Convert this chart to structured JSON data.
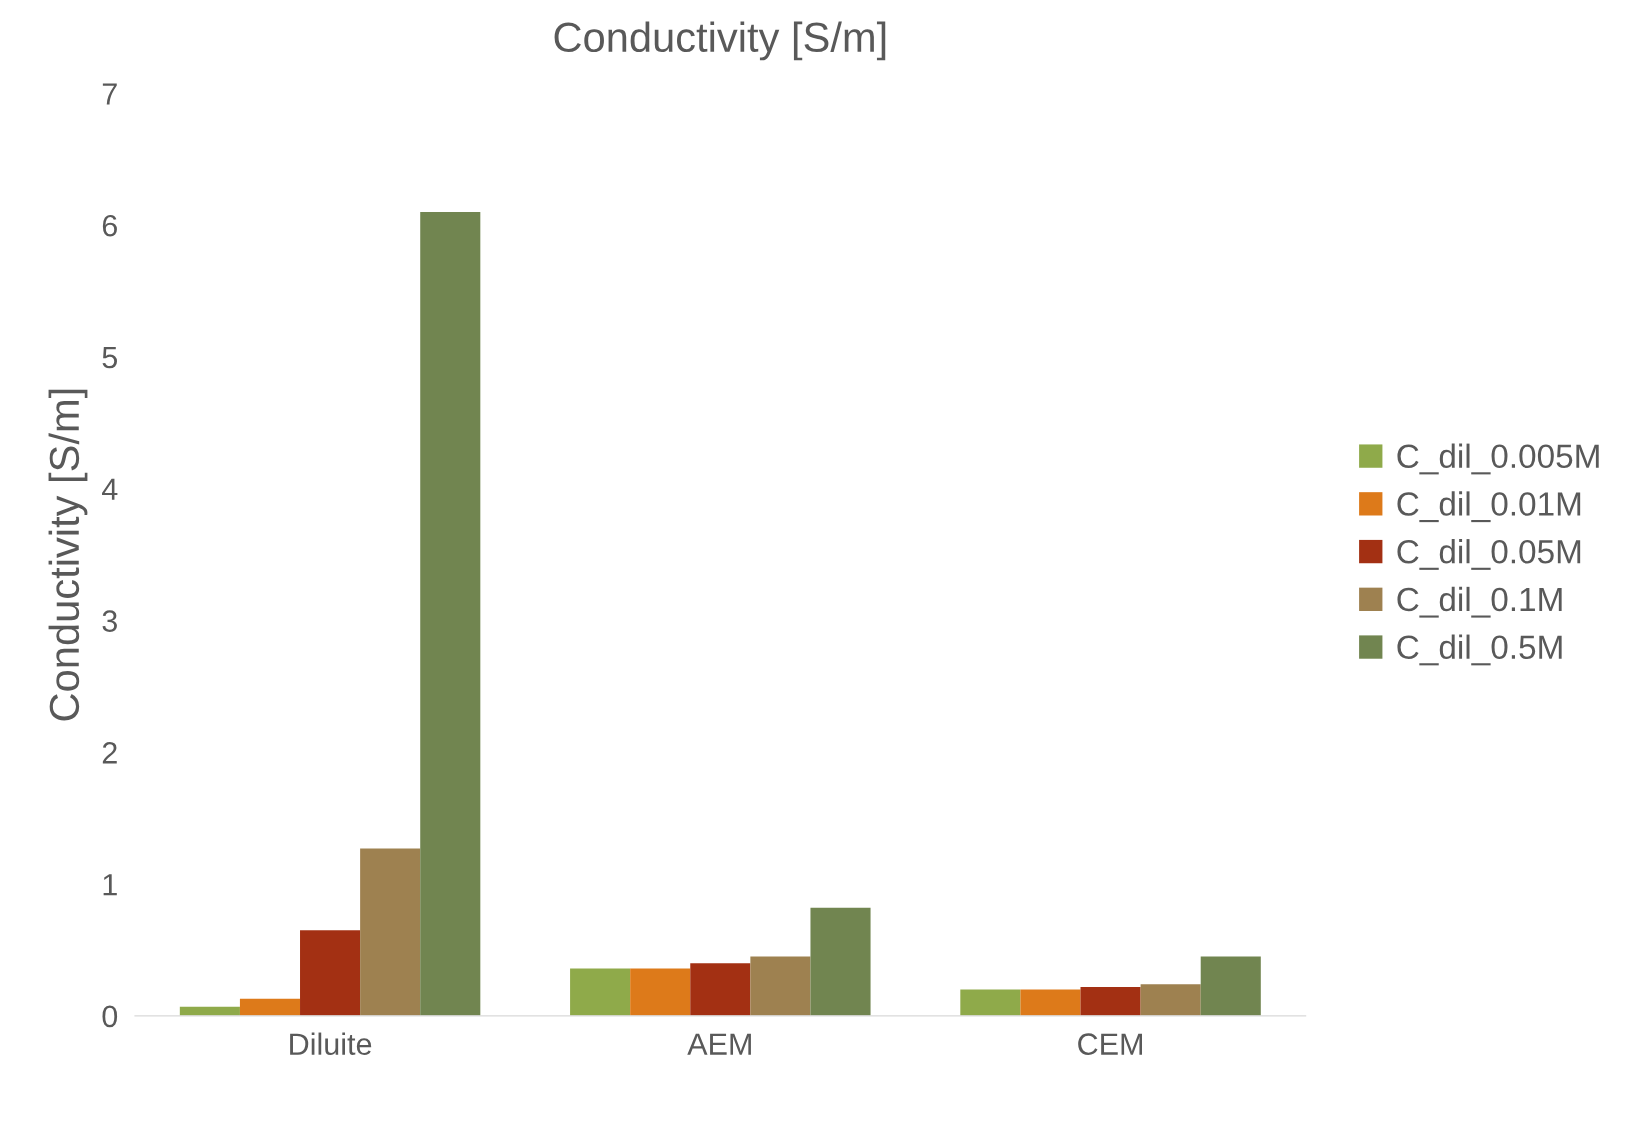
{
  "chart_data": {
    "type": "bar",
    "title": "Conductivity [S/m]",
    "ylabel": "Conductivity [S/m]",
    "categories": [
      "Diluite",
      "AEM",
      "CEM"
    ],
    "series": [
      {
        "name": "C_dil_0.005M",
        "color": "#8faa4a",
        "values": [
          0.07,
          0.36,
          0.2
        ]
      },
      {
        "name": "C_dil_0.01M",
        "color": "#dd7a1a",
        "values": [
          0.13,
          0.36,
          0.2
        ]
      },
      {
        "name": "C_dil_0.05M",
        "color": "#a33013",
        "values": [
          0.65,
          0.4,
          0.22
        ]
      },
      {
        "name": "C_dil_0.1M",
        "color": "#9e8150",
        "values": [
          1.27,
          0.45,
          0.24
        ]
      },
      {
        "name": "C_dil_0.5M",
        "color": "#718550",
        "values": [
          6.1,
          0.82,
          0.45
        ]
      }
    ],
    "ylim": [
      0,
      7
    ],
    "yticks": [
      0,
      1,
      2,
      3,
      4,
      5,
      6,
      7
    ],
    "grid": false,
    "legend": "right"
  }
}
